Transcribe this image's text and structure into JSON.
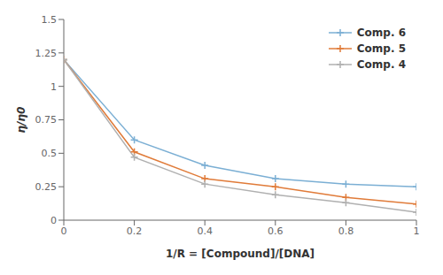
{
  "chart_data": {
    "type": "line",
    "xlabel": "1/R = [Compound]/[DNA]",
    "ylabel": "η/η0",
    "x": [
      0,
      0.2,
      0.4,
      0.6,
      0.8,
      1.0
    ],
    "series": [
      {
        "name": "Comp. 6",
        "color": "#7BAFD4",
        "values": [
          1.2,
          0.6,
          0.41,
          0.31,
          0.27,
          0.25
        ]
      },
      {
        "name": "Comp. 5",
        "color": "#E07B39",
        "values": [
          1.2,
          0.51,
          0.31,
          0.25,
          0.17,
          0.12
        ]
      },
      {
        "name": "Comp. 4",
        "color": "#B0B0B0",
        "values": [
          1.2,
          0.47,
          0.27,
          0.19,
          0.13,
          0.06
        ]
      }
    ],
    "xlim": [
      0,
      1.0
    ],
    "ylim": [
      0,
      1.5
    ],
    "xticks": [
      0,
      0.2,
      0.4,
      0.6,
      0.8,
      1
    ],
    "yticks": [
      0,
      0.25,
      0.5,
      0.75,
      1,
      1.25,
      1.5
    ],
    "grid": false,
    "legend": "upper right",
    "marker": "plus"
  }
}
